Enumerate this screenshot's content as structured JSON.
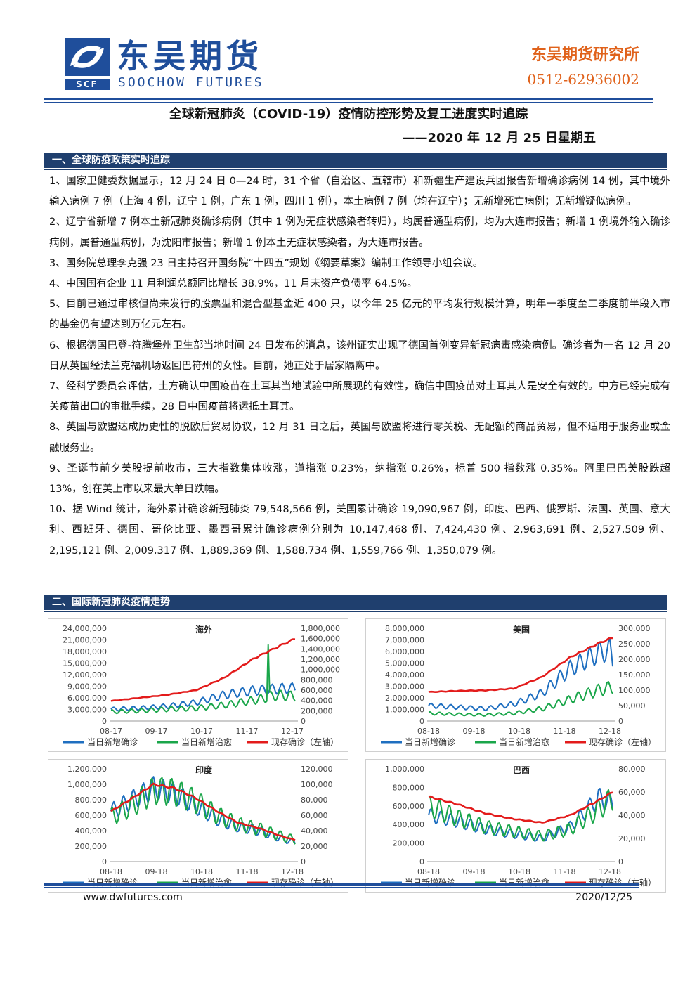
{
  "header": {
    "logo_cn": "东吴期货",
    "logo_en": "SOOCHOW FUTURES",
    "logo_mark": "SCF",
    "institute": "东吴期货研究所",
    "phone": "0512-62936002"
  },
  "title": "全球新冠肺炎（COVID-19）疫情防控形势及复工进度实时追踪",
  "date_line": "——2020 年 12 月 25 日星期五",
  "section1": {
    "heading": "一、全球防疫政策实时追踪",
    "items": [
      "1、国家卫健委数据显示，12 月 24 日 0—24 时，31 个省（自治区、直辖市）和新疆生产建设兵团报告新增确诊病例 14 例，其中境外输入病例 7 例（上海 4 例，辽宁 1 例，广东 1 例，四川 1 例），本土病例 7 例（均在辽宁）；无新增死亡病例；无新增疑似病例。",
      "2、辽宁省新增 7 例本土新冠肺炎确诊病例（其中 1 例为无症状感染者转归），均属普通型病例，均为大连市报告；新增 1 例境外输入确诊病例，属普通型病例，为沈阳市报告；新增 1 例本土无症状感染者，为大连市报告。",
      "3、国务院总理李克强 23 日主持召开国务院“十四五”规划《纲要草案》编制工作领导小组会议。",
      "4、中国国有企业 11 月利润总额同比增长 38.9%，11 月末资产负债率 64.5%。",
      "5、目前已通过审核但尚未发行的股票型和混合型基金近 400 只，以今年 25 亿元的平均发行规模计算，明年一季度至二季度前半段入市的基金仍有望达到万亿元左右。",
      "6、根据德国巴登-符腾堡州卫生部当地时间 24 日发布的消息，该州证实出现了德国首例变异新冠病毒感染病例。确诊者为一名 12 月 20 日从英国经法兰克福机场返回巴符州的女性。目前，她正处于居家隔离中。",
      "7、经科学委员会评估，土方确认中国疫苗在土耳其当地试验中所展现的有效性，确信中国疫苗对土耳其人是安全有效的。中方已经完成有关疫苗出口的审批手续，28 日中国疫苗将运抵土耳其。",
      "8、英国与欧盟达成历史性的脱欧后贸易协议，12 月 31 日之后，英国与欧盟将进行零关税、无配额的商品贸易，但不适用于服务业或金融服务业。",
      "9、圣诞节前夕美股提前收市，三大指数集体收涨，道指涨 0.23%，纳指涨 0.26%，标普 500 指数涨 0.35%。阿里巴巴美股跌超 13%，创在美上市以来最大单日跌幅。",
      "10、据 Wind 统计，海外累计确诊新冠肺炎 79,548,566 例，美国累计确诊 19,090,967 例，印度、巴西、俄罗斯、法国、英国、意大利、西班牙、德国、哥伦比亚、墨西哥累计确诊病例分别为 10,147,468 例、7,424,430 例、2,963,691 例、2,527,509 例、2,195,121 例、2,009,317 例、1,889,369 例、1,588,734 例、1,559,766 例、1,350,079 例。"
    ]
  },
  "section2": {
    "heading": "二、国际新冠肺炎疫情走势"
  },
  "colors": {
    "brand": "#1f4e9b",
    "accent": "#e0621b",
    "section_bar": "#1f3f6e",
    "new_cases": "#1f6fc0",
    "recovered": "#1aa64a",
    "active": "#e31b1b"
  },
  "chart_data": [
    {
      "type": "line",
      "title": "海外",
      "x_ticks": [
        "08-17",
        "09-17",
        "10-17",
        "11-17",
        "12-17"
      ],
      "y_left_ticks": [
        "24,000,000",
        "21,000,000",
        "18,000,000",
        "15,000,000",
        "12,000,000",
        "9,000,000",
        "6,000,000",
        "3,000,000",
        "0"
      ],
      "y_right_ticks": [
        "1,800,000",
        "1,600,000",
        "1,400,000",
        "1,200,000",
        "1,000,000",
        "800,000",
        "600,000",
        "400,000",
        "200,000",
        "0"
      ],
      "ylim_left": [
        0,
        24000000
      ],
      "ylim_right": [
        0,
        1800000
      ],
      "legend": [
        "当日新增确诊",
        "当日新增治愈",
        "现存确诊（左轴）"
      ],
      "series": [
        {
          "name": "当日新增确诊",
          "axis": "right",
          "x": [
            0,
            20,
            40,
            60,
            80,
            100,
            120,
            130
          ],
          "values": [
            230000,
            250000,
            290000,
            360000,
            510000,
            590000,
            630000,
            640000
          ]
        },
        {
          "name": "当日新增治愈",
          "axis": "right",
          "x": [
            0,
            20,
            40,
            60,
            80,
            100,
            110,
            111,
            112,
            120,
            130
          ],
          "values": [
            180000,
            200000,
            230000,
            250000,
            310000,
            400000,
            450000,
            1450000,
            480000,
            500000,
            480000
          ]
        },
        {
          "name": "现存确诊（左轴）",
          "axis": "left",
          "x": [
            0,
            20,
            40,
            60,
            80,
            100,
            120,
            130
          ],
          "values": [
            5200000,
            6000000,
            6800000,
            8000000,
            11200000,
            16000000,
            19600000,
            21300000
          ]
        }
      ]
    },
    {
      "type": "line",
      "title": "美国",
      "x_ticks": [
        "08-18",
        "09-18",
        "10-18",
        "11-18",
        "12-18"
      ],
      "y_left_ticks": [
        "8,000,000",
        "7,000,000",
        "6,000,000",
        "5,000,000",
        "4,000,000",
        "3,000,000",
        "2,000,000",
        "1,000,000",
        "0"
      ],
      "y_right_ticks": [
        "300,000",
        "250,000",
        "200,000",
        "150,000",
        "100,000",
        "50,000",
        "0"
      ],
      "ylim_left": [
        0,
        8000000
      ],
      "ylim_right": [
        0,
        300000
      ],
      "legend": [
        "当日新增确诊",
        "当日新增治愈",
        "现存确诊（左轴）"
      ],
      "series": [
        {
          "name": "当日新增确诊",
          "axis": "right",
          "x": [
            0,
            20,
            40,
            60,
            80,
            100,
            120,
            128,
            130
          ],
          "values": [
            50000,
            45000,
            40000,
            55000,
            90000,
            170000,
            220000,
            230000,
            190000
          ]
        },
        {
          "name": "当日新增治愈",
          "axis": "right",
          "x": [
            0,
            20,
            40,
            60,
            80,
            100,
            120,
            130
          ],
          "values": [
            25000,
            22000,
            20000,
            25000,
            40000,
            70000,
            100000,
            110000
          ]
        },
        {
          "name": "现存确诊（左轴）",
          "axis": "left",
          "x": [
            0,
            20,
            40,
            60,
            80,
            100,
            120,
            130
          ],
          "values": [
            2500000,
            2600000,
            2650000,
            2800000,
            3800000,
            5500000,
            6700000,
            7200000
          ]
        }
      ]
    },
    {
      "type": "line",
      "title": "印度",
      "x_ticks": [
        "08-18",
        "09-18",
        "10-18",
        "11-18",
        "12-18"
      ],
      "y_left_ticks": [
        "1,200,000",
        "1,000,000",
        "800,000",
        "600,000",
        "400,000",
        "200,000",
        "0"
      ],
      "y_right_ticks": [
        "120,000",
        "100,000",
        "80,000",
        "60,000",
        "40,000",
        "20,000",
        "0"
      ],
      "ylim_left": [
        0,
        1200000
      ],
      "ylim_right": [
        0,
        120000
      ],
      "legend": [
        "当日新增确诊",
        "当日新增治愈",
        "现存确诊（左轴）"
      ],
      "series": [
        {
          "name": "当日新增确诊",
          "axis": "right",
          "x": [
            0,
            15,
            30,
            45,
            60,
            75,
            90,
            105,
            120,
            130
          ],
          "values": [
            65000,
            80000,
            95000,
            88000,
            72000,
            55000,
            45000,
            40000,
            30000,
            25000
          ]
        },
        {
          "name": "当日新增治愈",
          "axis": "right",
          "x": [
            0,
            15,
            30,
            45,
            60,
            75,
            90,
            105,
            120,
            130
          ],
          "values": [
            58000,
            72000,
            92000,
            90000,
            78000,
            60000,
            48000,
            42000,
            33000,
            28000
          ]
        },
        {
          "name": "现存确诊（左轴）",
          "axis": "left",
          "x": [
            0,
            15,
            30,
            45,
            60,
            75,
            90,
            105,
            120,
            130
          ],
          "values": [
            650000,
            820000,
            1000000,
            950000,
            820000,
            650000,
            500000,
            430000,
            330000,
            280000
          ]
        }
      ]
    },
    {
      "type": "line",
      "title": "巴西",
      "x_ticks": [
        "08-18",
        "09-18",
        "10-18",
        "11-18",
        "12-18"
      ],
      "y_left_ticks": [
        "1,000,000",
        "800,000",
        "600,000",
        "400,000",
        "200,000",
        "0"
      ],
      "y_right_ticks": [
        "80,000",
        "60,000",
        "40,000",
        "20,000",
        "0"
      ],
      "ylim_left": [
        0,
        1000000
      ],
      "ylim_right": [
        0,
        80000
      ],
      "legend": [
        "当日新增确诊",
        "当日新增治愈",
        "现存确诊（左轴）"
      ],
      "series": [
        {
          "name": "当日新增确诊",
          "axis": "right",
          "x": [
            0,
            20,
            40,
            60,
            80,
            100,
            120,
            130
          ],
          "values": [
            40000,
            35000,
            28000,
            24000,
            20000,
            30000,
            55000,
            50000
          ]
        },
        {
          "name": "当日新增治愈",
          "axis": "right",
          "x": [
            0,
            20,
            40,
            60,
            80,
            100,
            120,
            130
          ],
          "values": [
            48000,
            38000,
            30000,
            26000,
            22000,
            28000,
            45000,
            55000
          ]
        },
        {
          "name": "现存确诊（左轴）",
          "axis": "left",
          "x": [
            0,
            20,
            40,
            60,
            80,
            100,
            120,
            130
          ],
          "values": [
            700000,
            620000,
            520000,
            460000,
            420000,
            500000,
            660000,
            750000
          ]
        }
      ]
    }
  ],
  "footer": {
    "url": "www.dwfutures.com",
    "date": "2020/12/25"
  }
}
